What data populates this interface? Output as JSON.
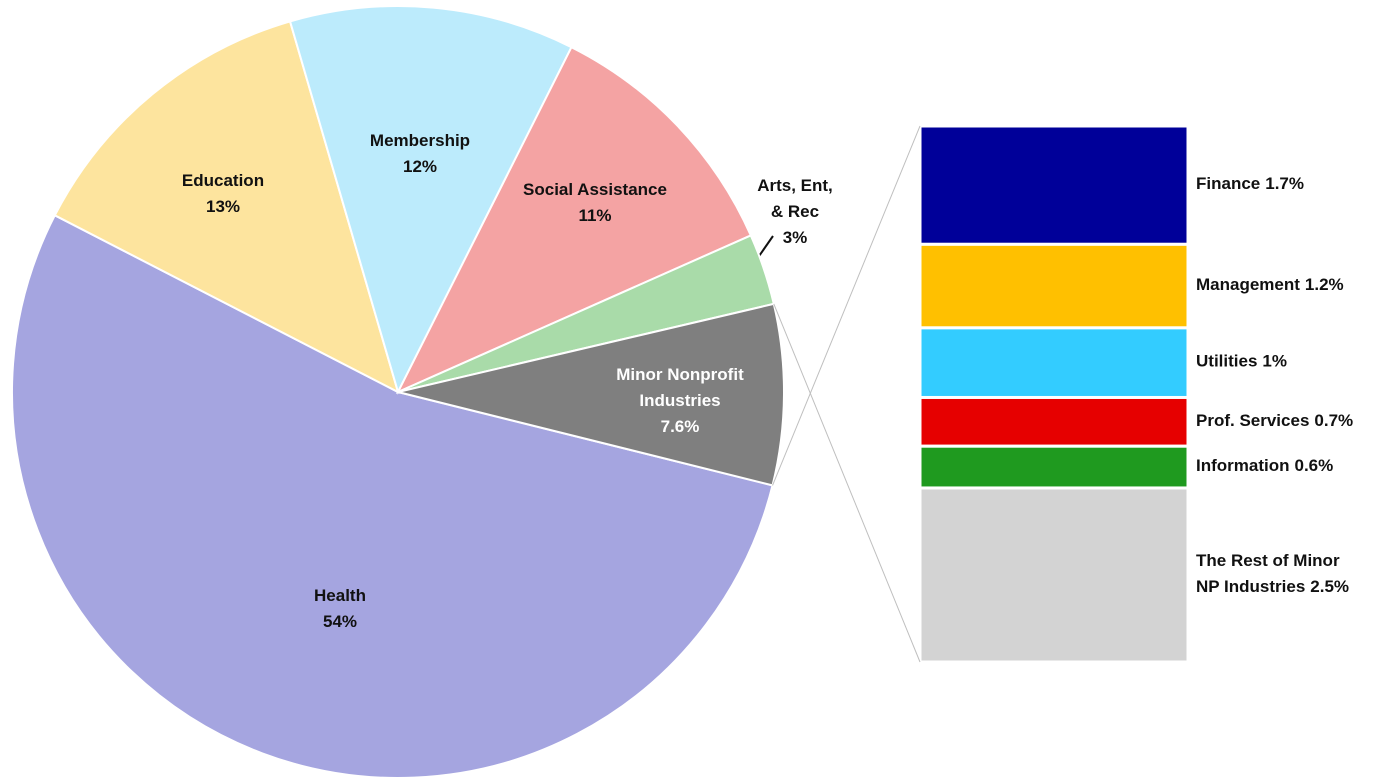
{
  "chart_data": [
    {
      "type": "pie",
      "categories": [
        [
          "Health"
        ],
        [
          "Education"
        ],
        [
          "Membership"
        ],
        [
          "Social Assistance"
        ],
        [
          "Arts, Ent,",
          "& Rec"
        ],
        [
          "Minor Nonprofit",
          "Industries"
        ]
      ],
      "values": [
        54,
        13,
        12,
        11,
        3,
        7.6
      ],
      "value_labels": [
        "54%",
        "13%",
        "12%",
        "11%",
        "3%",
        "7.6%"
      ],
      "colors": [
        "#a5a5e0",
        "#fde49e",
        "#bcebfc",
        "#f4a3a3",
        "#a9dba9",
        "#7f7f7f"
      ]
    },
    {
      "type": "stacked-bar",
      "categories": [
        [
          "Finance"
        ],
        [
          "Management"
        ],
        [
          "Utilities"
        ],
        [
          "Prof. Services"
        ],
        [
          "Information"
        ],
        [
          "The Rest of Minor",
          "NP Industries"
        ]
      ],
      "values": [
        1.7,
        1.2,
        1,
        0.7,
        0.6,
        2.5
      ],
      "value_labels": [
        "1.7%",
        "1.2%",
        "1%",
        "0.7%",
        "0.6%",
        "2.5%"
      ],
      "colors": [
        "#000099",
        "#ffc000",
        "#33ccff",
        "#e60000",
        "#1f9a1f",
        "#d3d3d3"
      ]
    }
  ]
}
